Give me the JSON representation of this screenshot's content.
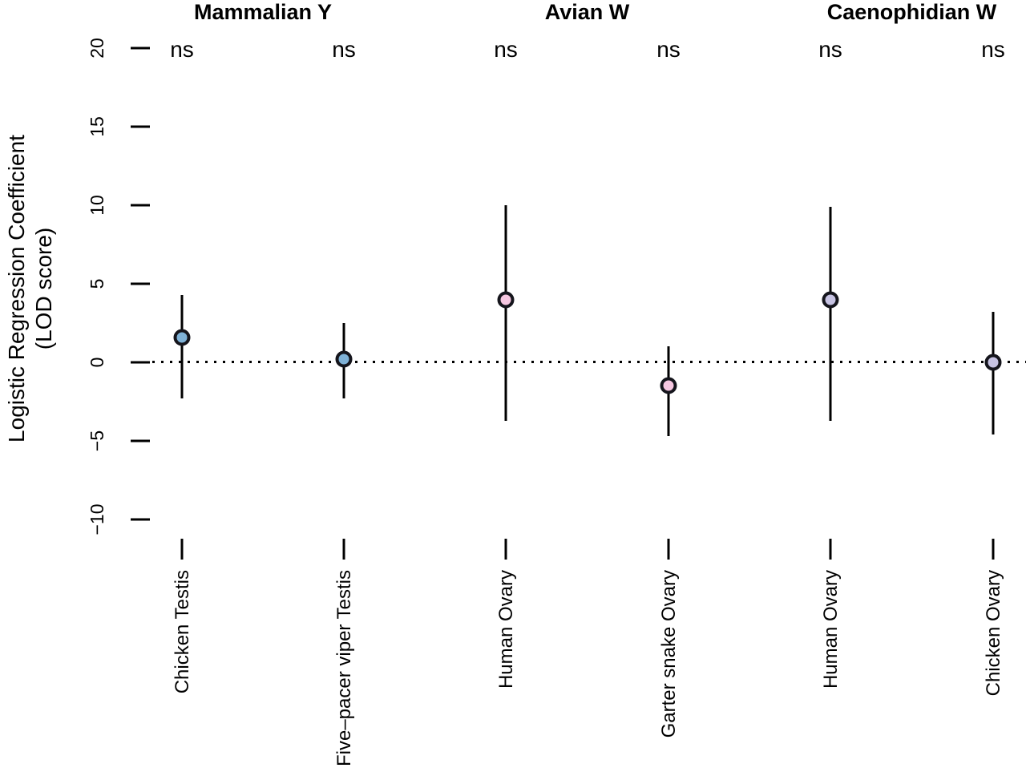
{
  "chart_data": {
    "type": "scatter",
    "subtype": "point-estimates-with-error-bars",
    "title": "",
    "ylabel": "Logistic Regression Coefficient (LOD score)",
    "ylabel_line1": "Logistic Regression Coefficient",
    "ylabel_line2": "(LOD score)",
    "ylim": [
      -12,
      21
    ],
    "y_ticks": [
      20,
      15,
      10,
      5,
      0,
      -5,
      -10
    ],
    "y_tick_labels": [
      "20",
      "15",
      "10",
      "5",
      "0",
      "−5",
      "−10"
    ],
    "zero_line": {
      "value": 0,
      "style": "dotted",
      "color": "#000000"
    },
    "grid": false,
    "legend": "none",
    "point_outline_color": "#15151c",
    "groups": [
      {
        "label": "Mammalian Y",
        "columns": [
          0,
          1
        ]
      },
      {
        "label": "Avian W",
        "columns": [
          2,
          3
        ]
      },
      {
        "label": "Caenophidian W",
        "columns": [
          4,
          5
        ]
      }
    ],
    "points": [
      {
        "group": "Mammalian Y",
        "category": "Chicken Testis",
        "estimate": 1.6,
        "ci_low": -2.3,
        "ci_high": 4.3,
        "significance": "ns",
        "color": "#7fb2d7"
      },
      {
        "group": "Mammalian Y",
        "category": "Five–pacer viper Testis",
        "estimate": 0.2,
        "ci_low": -2.3,
        "ci_high": 2.5,
        "significance": "ns",
        "color": "#7fb2d7"
      },
      {
        "group": "Avian W",
        "category": "Human Ovary",
        "estimate": 4.0,
        "ci_low": -3.7,
        "ci_high": 10.0,
        "significance": "ns",
        "color": "#f6c7e1"
      },
      {
        "group": "Avian W",
        "category": "Garter snake Ovary",
        "estimate": -1.5,
        "ci_low": -4.7,
        "ci_high": 1.0,
        "significance": "ns",
        "color": "#f6c7e1"
      },
      {
        "group": "Caenophidian W",
        "category": "Human Ovary",
        "estimate": 4.0,
        "ci_low": -3.7,
        "ci_high": 9.9,
        "significance": "ns",
        "color": "#c7c3e3"
      },
      {
        "group": "Caenophidian W",
        "category": "Chicken Ovary",
        "estimate": 0.0,
        "ci_low": -4.6,
        "ci_high": 3.2,
        "significance": "ns",
        "color": "#c7c3e3"
      }
    ]
  }
}
